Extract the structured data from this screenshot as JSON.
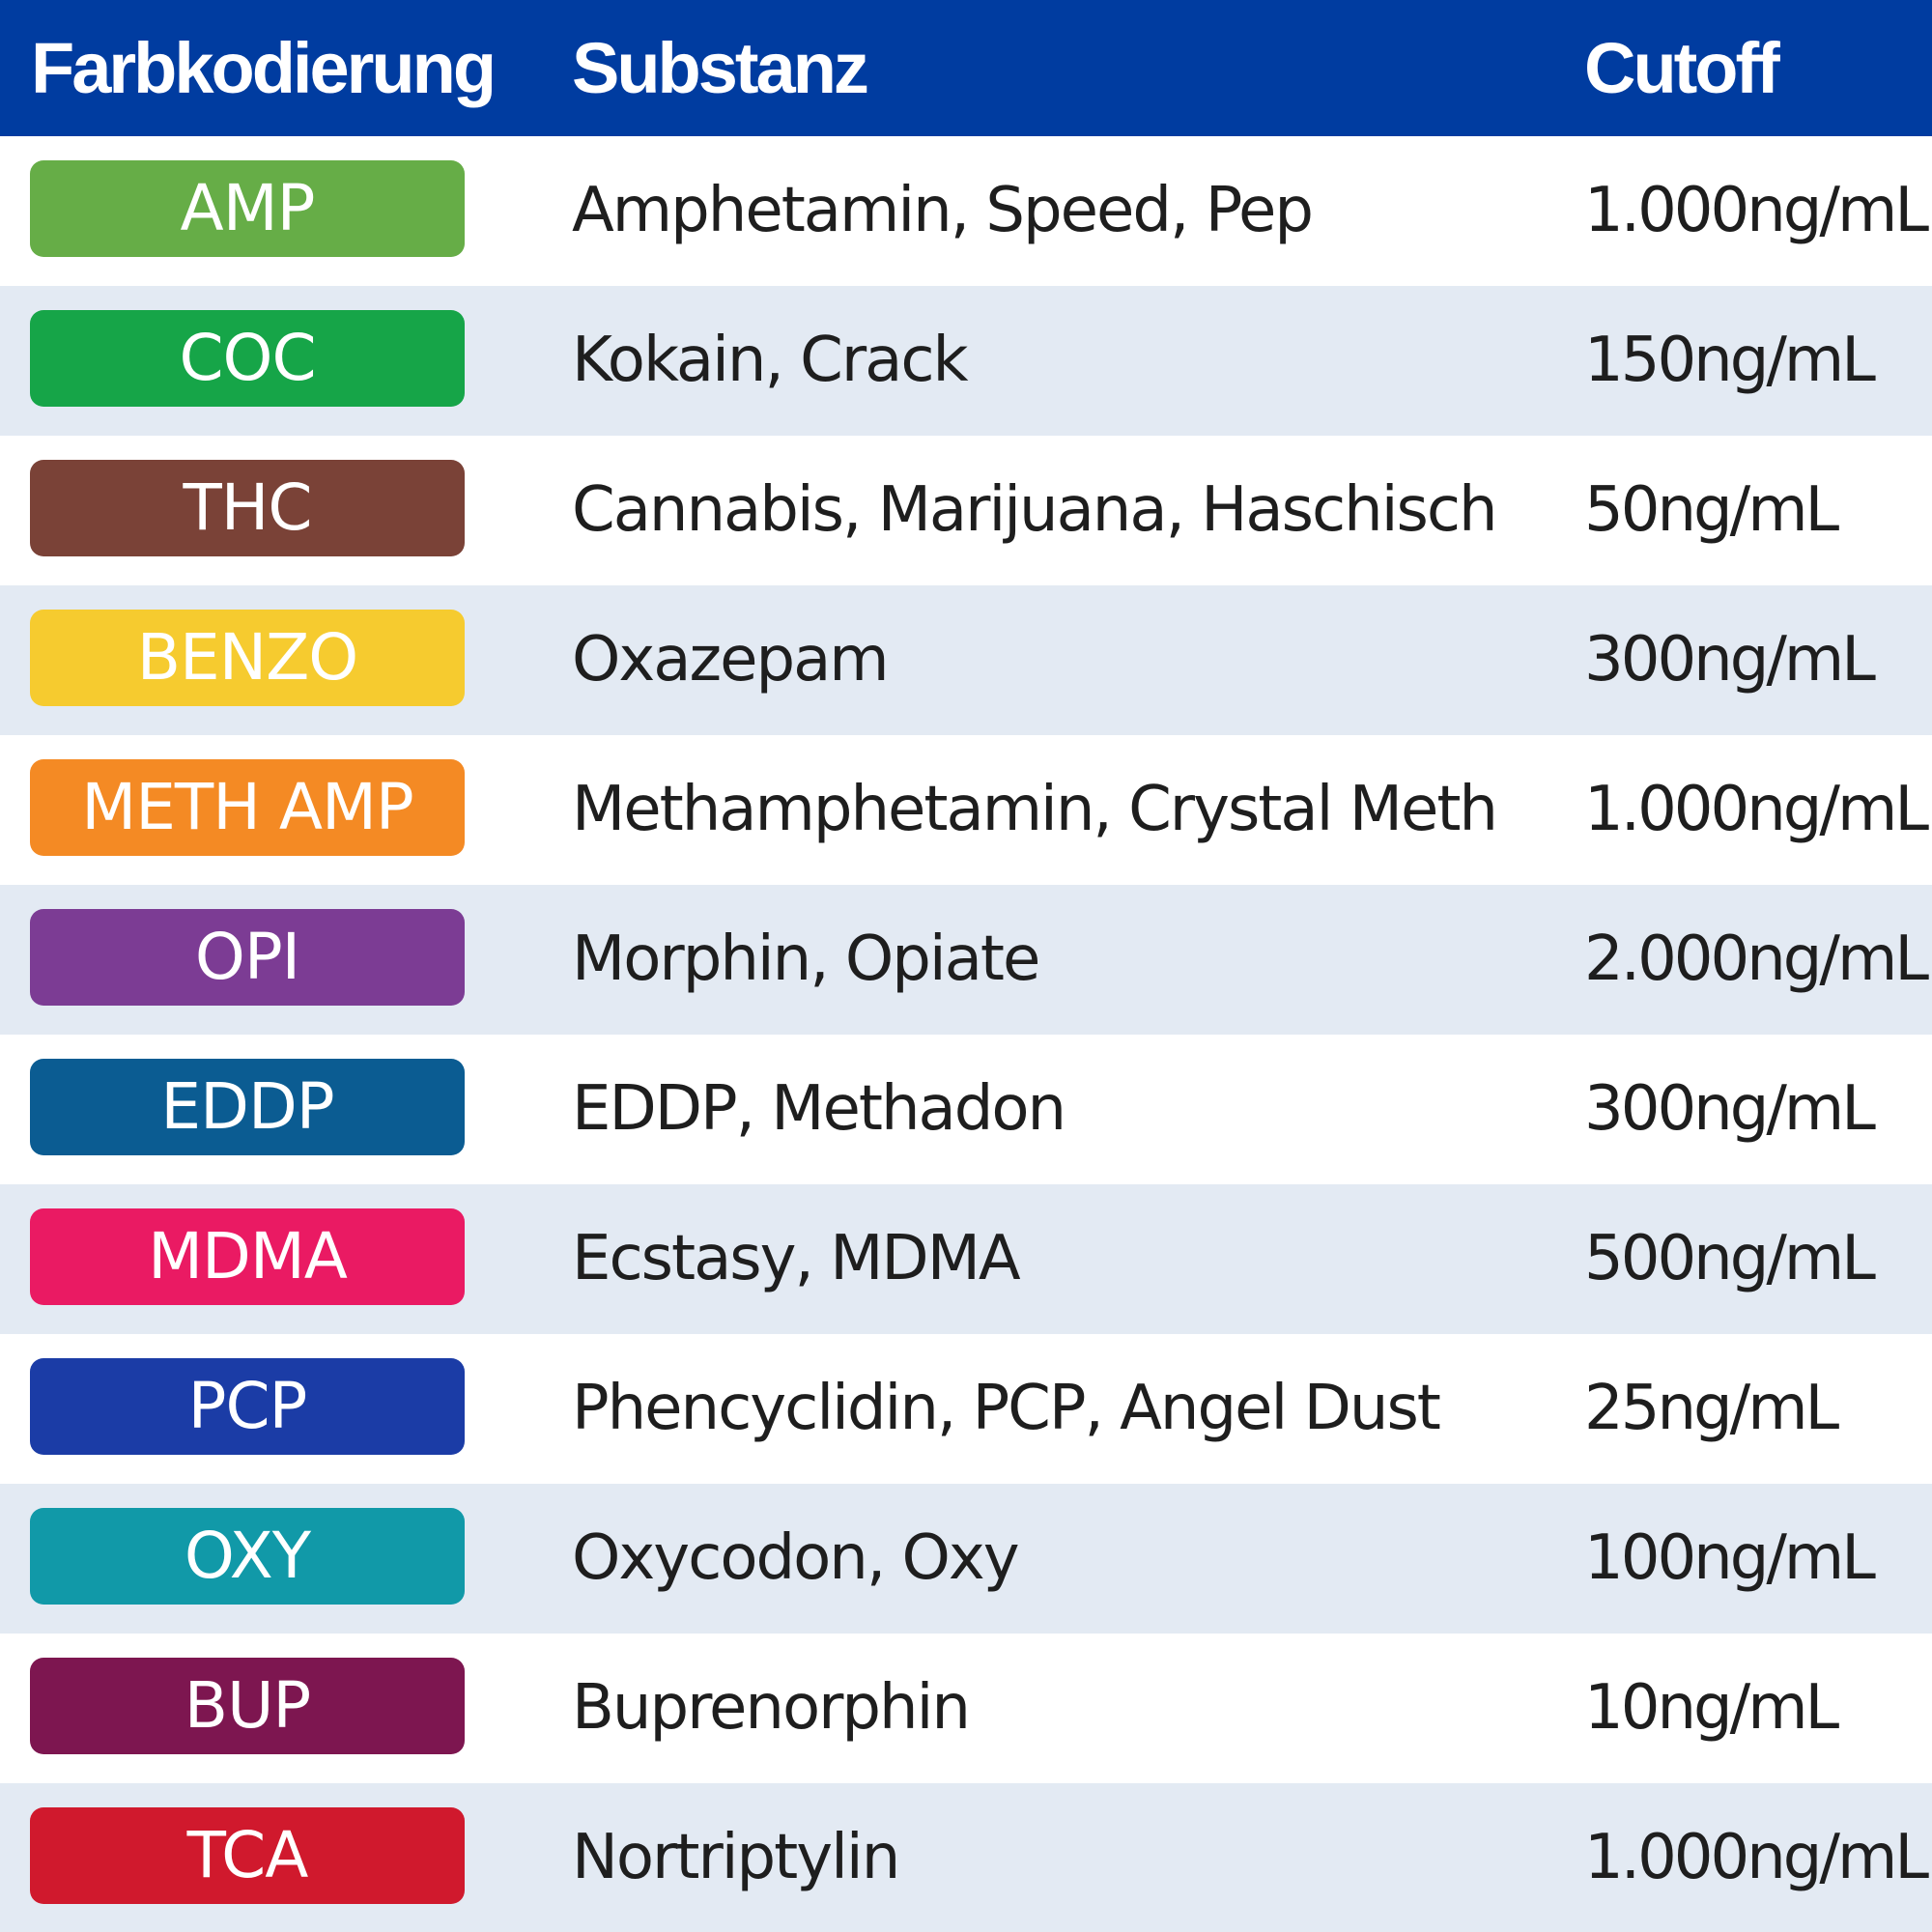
{
  "header": {
    "color_col": "Farbkodierung",
    "substance_col": "Substanz",
    "cutoff_col": "Cutoff"
  },
  "rows": [
    {
      "code": "AMP",
      "substance": "Amphetamin, Speed, Pep",
      "cutoff": "1.000ng/mL",
      "color": "#66ad47"
    },
    {
      "code": "COC",
      "substance": "Kokain, Crack",
      "cutoff": "150ng/mL",
      "color": "#16a548"
    },
    {
      "code": "THC",
      "substance": "Cannabis, Marijuana, Haschisch",
      "cutoff": "50ng/mL",
      "color": "#7a4237"
    },
    {
      "code": "BENZO",
      "substance": "Oxazepam",
      "cutoff": "300ng/mL",
      "color": "#f6cb2f"
    },
    {
      "code": "METH AMP",
      "substance": "Methamphetamin, Crystal Meth",
      "cutoff": "1.000ng/mL",
      "color": "#f48a24"
    },
    {
      "code": "OPI",
      "substance": "Morphin, Opiate",
      "cutoff": "2.000ng/mL",
      "color": "#7c3c94"
    },
    {
      "code": "EDDP",
      "substance": "EDDP, Methadon",
      "cutoff": "300ng/mL",
      "color": "#0b5c92"
    },
    {
      "code": "MDMA",
      "substance": "Ecstasy, MDMA",
      "cutoff": "500ng/mL",
      "color": "#ea1a63"
    },
    {
      "code": "PCP",
      "substance": "Phencyclidin, PCP, Angel Dust",
      "cutoff": "25ng/mL",
      "color": "#1b3ca6"
    },
    {
      "code": "OXY",
      "substance": "Oxycodon, Oxy",
      "cutoff": "100ng/mL",
      "color": "#1199a8"
    },
    {
      "code": "BUP",
      "substance": "Buprenorphin",
      "cutoff": "10ng/mL",
      "color": "#7d1650"
    },
    {
      "code": "TCA",
      "substance": "Nortriptylin",
      "cutoff": "1.000ng/mL",
      "color": "#d0192d"
    }
  ]
}
